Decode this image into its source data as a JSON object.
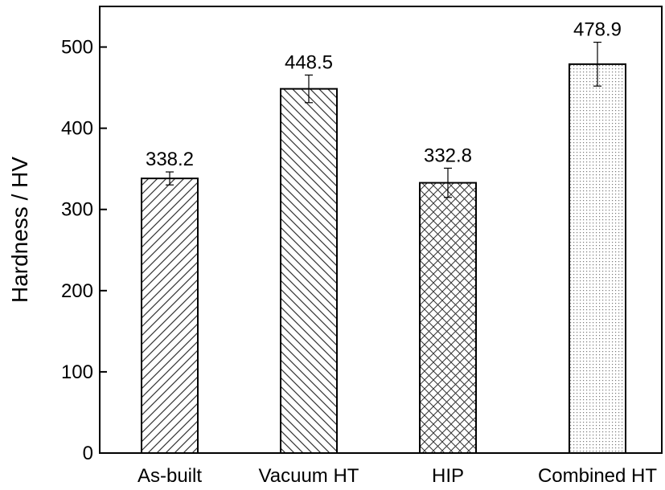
{
  "chart_data": {
    "type": "bar",
    "title": "",
    "xlabel": "",
    "ylabel": "Hardness / HV",
    "ylim": [
      0,
      550
    ],
    "yticks": [
      0,
      100,
      200,
      300,
      400,
      500
    ],
    "categories": [
      "As-built",
      "Vacuum HT",
      "HIP",
      "Combined HT"
    ],
    "values": [
      338.2,
      448.5,
      332.8,
      478.9
    ],
    "value_labels": [
      "338.2",
      "448.5",
      "332.8",
      "478.9"
    ],
    "error": [
      8,
      17,
      18,
      27
    ],
    "patterns": [
      "diagonal-forward",
      "diagonal-backward",
      "crosshatch",
      "dots"
    ],
    "grid": false,
    "colors": {
      "bar_fill": "#ffffff",
      "stroke": "#000000",
      "pattern": "#555555"
    }
  }
}
